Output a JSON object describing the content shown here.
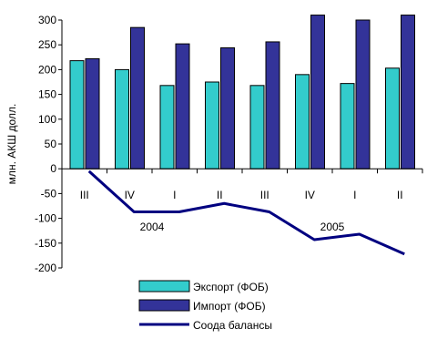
{
  "chart_data": {
    "type": "bar",
    "ylabel": "млн. АКШ долл.",
    "ylim": [
      -200,
      300
    ],
    "yticks": [
      -200,
      -150,
      -100,
      -50,
      0,
      50,
      100,
      150,
      200,
      250,
      300
    ],
    "yticklabels": [
      "-200",
      "-150",
      "-100",
      "-50",
      "0",
      "50",
      "100",
      "150",
      "200",
      "250",
      "300"
    ],
    "categories": [
      "III",
      "IV",
      "I",
      "II",
      "III",
      "IV",
      "I",
      "II"
    ],
    "year_labels": [
      {
        "label": "2004",
        "after_index": 1
      },
      {
        "label": "2005",
        "after_index": 5
      }
    ],
    "series": [
      {
        "name": "Экспорт (ФОБ)",
        "kind": "bar",
        "color": "#33cccc",
        "values": [
          218,
          200,
          168,
          175,
          168,
          190,
          172,
          203
        ]
      },
      {
        "name": "Импорт (ФОБ)",
        "kind": "bar",
        "color": "#333399",
        "values": [
          222,
          285,
          252,
          244,
          256,
          310,
          300,
          310
        ]
      },
      {
        "name": "Соода балансы",
        "kind": "line",
        "color": "#000080",
        "values": [
          -5,
          -87,
          -87,
          -70,
          -87,
          -143,
          -132,
          -172
        ]
      }
    ],
    "grid": false,
    "legend": "bottom"
  }
}
